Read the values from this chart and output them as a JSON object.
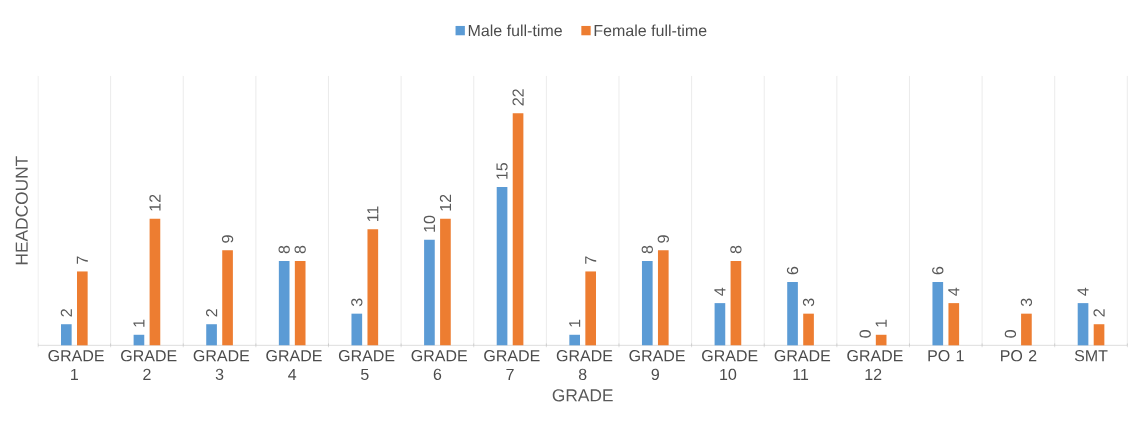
{
  "chart_data": {
    "type": "bar",
    "xlabel": "GRADE",
    "ylabel": "HEADCOUNT",
    "categories": [
      "GRADE 1",
      "GRADE 2",
      "GRADE 3",
      "GRADE 4",
      "GRADE 5",
      "GRADE 6",
      "GRADE 7",
      "GRADE 8",
      "GRADE 9",
      "GRADE 10",
      "GRADE 11",
      "GRADE 12",
      "PO 1",
      "PO 2",
      "SMT"
    ],
    "series": [
      {
        "name": "Male full-time",
        "color": "#5b9bd5",
        "values": [
          2,
          1,
          2,
          8,
          3,
          10,
          15,
          1,
          8,
          4,
          6,
          0,
          6,
          0,
          4
        ]
      },
      {
        "name": "Female full-time",
        "color": "#ed7d31",
        "values": [
          7,
          12,
          9,
          8,
          11,
          12,
          22,
          7,
          9,
          8,
          3,
          1,
          4,
          3,
          2
        ]
      }
    ],
    "data_labels": true,
    "grid": "x",
    "legend": "top"
  }
}
